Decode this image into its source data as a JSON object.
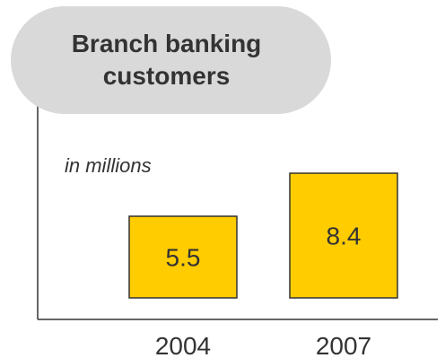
{
  "title": "Branch banking customers",
  "subtitle": "in millions",
  "colors": {
    "bar_fill": "#ffcc00",
    "bar_stroke": "#333333",
    "axis": "#333333",
    "title_bg": "#d9d9d9",
    "text": "#333333"
  },
  "chart_data": {
    "type": "bar",
    "title": "Branch banking customers",
    "subtitle": "in millions",
    "categories": [
      "2004",
      "2007"
    ],
    "values": [
      5.5,
      8.4
    ],
    "value_labels": [
      "5.5",
      "8.4"
    ],
    "xlabel": "",
    "ylabel": "",
    "ylim": [
      0,
      13.3
    ],
    "grid": false,
    "legend": "none"
  }
}
